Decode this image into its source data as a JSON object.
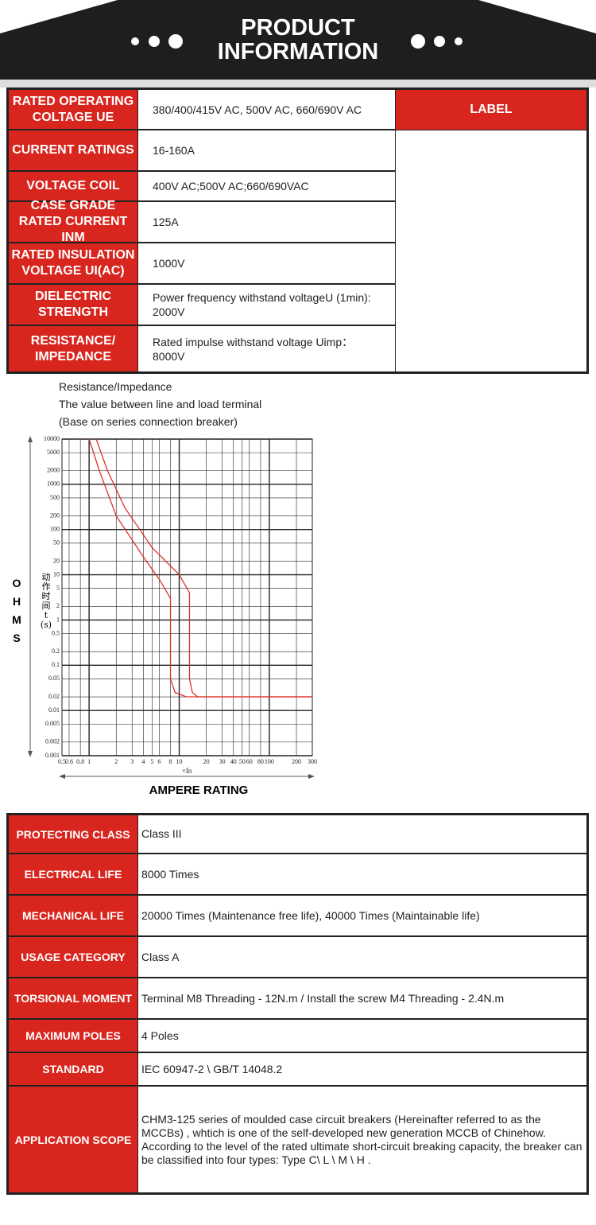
{
  "header": {
    "title": "PRODUCT INFORMATION"
  },
  "specs": {
    "label_header": "LABEL",
    "rows": [
      [
        "RATED OPERATING COLTAGE UE",
        "380/400/415V AC, 500V AC, 660/690V AC"
      ],
      [
        "CURRENT RATINGS",
        "16-160A"
      ],
      [
        "VOLTAGE COIL",
        "400V AC;500V AC;660/690VAC"
      ],
      [
        "CASE GRADE RATED CURRENT INM",
        "125A"
      ],
      [
        "RATED INSULATION VOLTAGE UI(AC)",
        "1000V"
      ],
      [
        "DIELECTRIC STRENGTH",
        "Power frequency withstand voltageU (1min): 2000V"
      ],
      [
        "RESISTANCE/ IMPEDANCE",
        "Rated impulse withstand voltage Uimp：8000V"
      ]
    ]
  },
  "chart_notes": [
    "Resistance/Impedance",
    "The value between line and load terminal",
    "(Base on series connection breaker)"
  ],
  "chart_data": {
    "type": "line",
    "y_label": "动作时间 t(s)",
    "x_label": "×In",
    "side_label": "OHMS",
    "caption": "AMPERE RATING",
    "log_x": true,
    "log_y": true,
    "grid": true,
    "xlim": [
      0.5,
      300
    ],
    "ylim": [
      0.001,
      10000
    ],
    "xticks": [
      0.5,
      0.6,
      0.8,
      1,
      2,
      3,
      4,
      5,
      6,
      8,
      10,
      20,
      30,
      40,
      50,
      60,
      80,
      100,
      200,
      300
    ],
    "yticks": [
      0.001,
      0.002,
      0.005,
      0.01,
      0.02,
      0.05,
      0.1,
      0.2,
      0.5,
      1,
      2,
      5,
      10,
      20,
      50,
      100,
      200,
      500,
      1000,
      2000,
      5000,
      10000
    ],
    "series": [
      {
        "color": "#e0302a",
        "x": [
          1,
          1.3,
          2,
          4,
          6,
          8,
          8,
          9,
          12,
          300
        ],
        "values": [
          10000,
          2000,
          200,
          25,
          8,
          3,
          0.05,
          0.025,
          0.02,
          0.02
        ]
      },
      {
        "color": "#e0302a",
        "x": [
          1.2,
          1.6,
          2.5,
          5,
          10,
          13,
          13,
          14,
          16,
          300
        ],
        "values": [
          10000,
          2000,
          300,
          40,
          10,
          4,
          0.05,
          0.025,
          0.02,
          0.02
        ]
      }
    ]
  },
  "details": {
    "rows": [
      [
        "PROTECTING CLASS",
        "Class III"
      ],
      [
        "ELECTRICAL LIFE",
        "8000 Times"
      ],
      [
        "MECHANICAL LIFE",
        "20000 Times (Maintenance free life), 40000 Times (Maintainable life)"
      ],
      [
        "USAGE CATEGORY",
        "Class A"
      ],
      [
        "TORSIONAL MOMENT",
        "Terminal M8 Threading - 12N.m / Install the screw M4 Threading - 2.4N.m"
      ],
      [
        "MAXIMUM POLES",
        "4 Poles"
      ],
      [
        "STANDARD",
        "IEC 60947-2 \\ GB/T 14048.2"
      ],
      [
        "APPLICATION SCOPE",
        "CHM3-125 series of moulded case circuit breakers (Hereinafter referred to as the MCCBs) , whtich is one of the self-developed new generation MCCB of Chinehow. According to the level of the rated ultimate short-circuit breaking capacity, the breaker can be classified into four types: Type C\\ L \\ M \\ H ."
      ]
    ]
  }
}
